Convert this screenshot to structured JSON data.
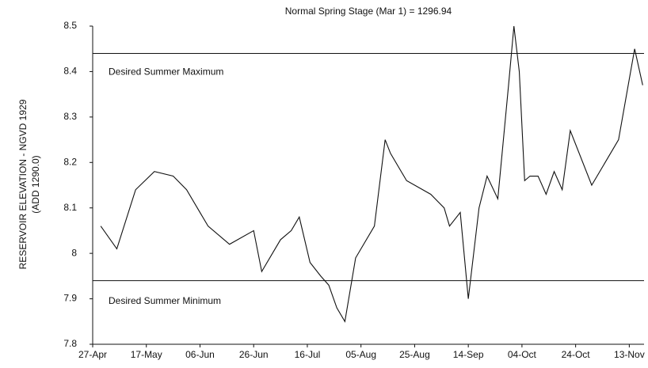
{
  "chart_data": {
    "type": "line",
    "title": "Normal Spring Stage (Mar 1) = 1296.94",
    "y_label": [
      "RESERVOIR ELEVATION - NGVD 1929",
      "(ADD 1290.0)"
    ],
    "x": [
      3,
      9,
      16,
      23,
      30,
      35,
      43,
      51,
      60,
      63,
      70,
      74,
      77,
      81,
      85,
      88,
      91,
      94,
      98,
      105,
      109,
      111,
      117,
      126,
      131,
      133,
      137,
      140,
      144,
      147,
      151,
      155,
      157,
      159,
      161,
      163,
      166,
      169,
      172,
      175,
      178,
      186,
      196,
      202,
      205
    ],
    "series": [
      {
        "name": "Reservoir Elevation",
        "color": "#111111",
        "values": [
          8.06,
          8.01,
          8.14,
          8.18,
          8.17,
          8.14,
          8.06,
          8.02,
          8.05,
          7.96,
          8.03,
          8.05,
          8.08,
          7.98,
          7.95,
          7.93,
          7.88,
          7.85,
          7.99,
          8.06,
          8.25,
          8.22,
          8.16,
          8.13,
          8.1,
          8.06,
          8.09,
          7.9,
          8.1,
          8.17,
          8.12,
          8.37,
          8.5,
          8.4,
          8.16,
          8.17,
          8.17,
          8.13,
          8.18,
          8.14,
          8.27,
          8.15,
          8.25,
          8.45,
          8.37
        ]
      }
    ],
    "reference_lines": [
      {
        "value": 8.44,
        "label": "Desired Summer Maximum"
      },
      {
        "value": 7.94,
        "label": "Desired Summer Minimum"
      }
    ],
    "xlim": [
      0,
      205.5
    ],
    "xticks": [
      {
        "value": 0,
        "label": "27-Apr"
      },
      {
        "value": 20,
        "label": "17-May"
      },
      {
        "value": 40,
        "label": "06-Jun"
      },
      {
        "value": 60,
        "label": "26-Jun"
      },
      {
        "value": 80,
        "label": "16-Jul"
      },
      {
        "value": 100,
        "label": "05-Aug"
      },
      {
        "value": 120,
        "label": "25-Aug"
      },
      {
        "value": 140,
        "label": "14-Sep"
      },
      {
        "value": 160,
        "label": "04-Oct"
      },
      {
        "value": 180,
        "label": "24-Oct"
      },
      {
        "value": 200,
        "label": "13-Nov"
      }
    ],
    "ylim": [
      7.8,
      8.5
    ],
    "yticks": [
      7.8,
      7.9,
      8,
      8.1,
      8.2,
      8.3,
      8.4,
      8.5
    ],
    "grid": false
  }
}
